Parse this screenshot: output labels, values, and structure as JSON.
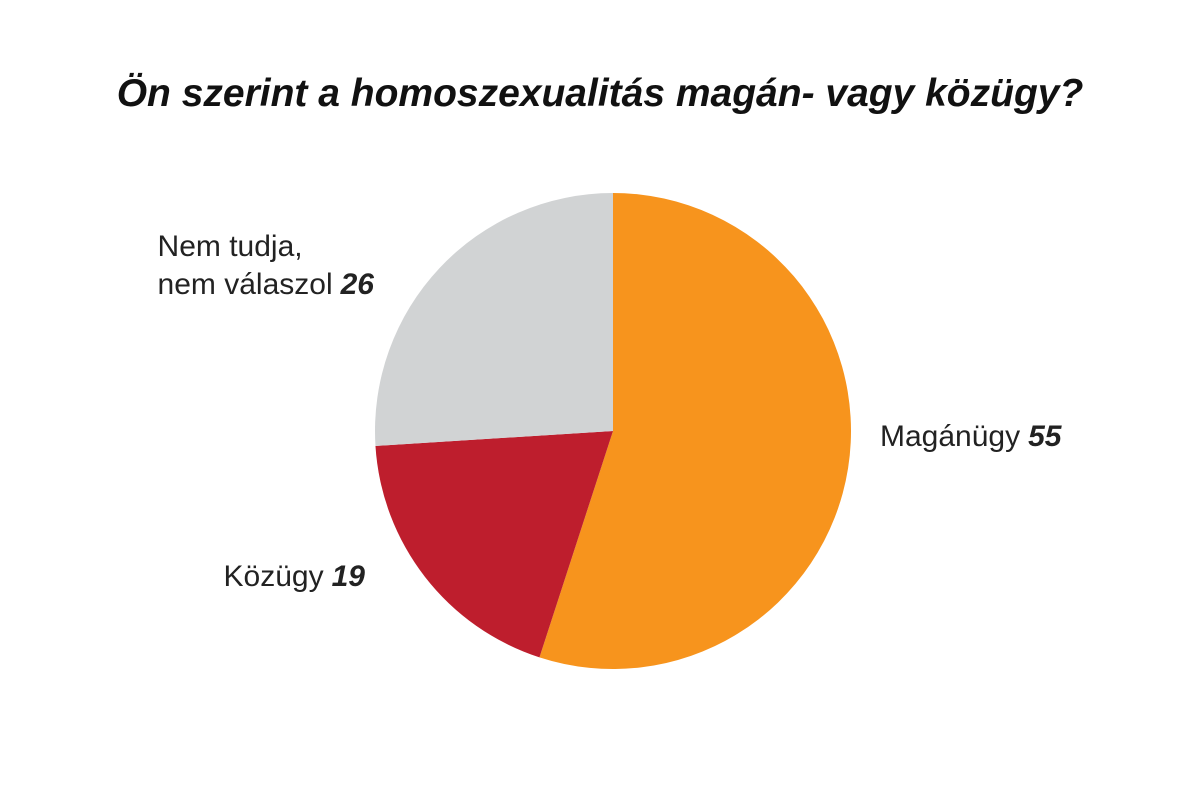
{
  "chart_data": {
    "type": "pie",
    "title": "Ön szerint a homoszexualitás magán- vagy közügy?",
    "categories": [
      "Magánügy",
      "Közügy",
      "Nem tudja,\nnem válaszol"
    ],
    "values": [
      55,
      19,
      26
    ],
    "colors": [
      "#f7941d",
      "#be1e2d",
      "#d1d3d4"
    ]
  }
}
